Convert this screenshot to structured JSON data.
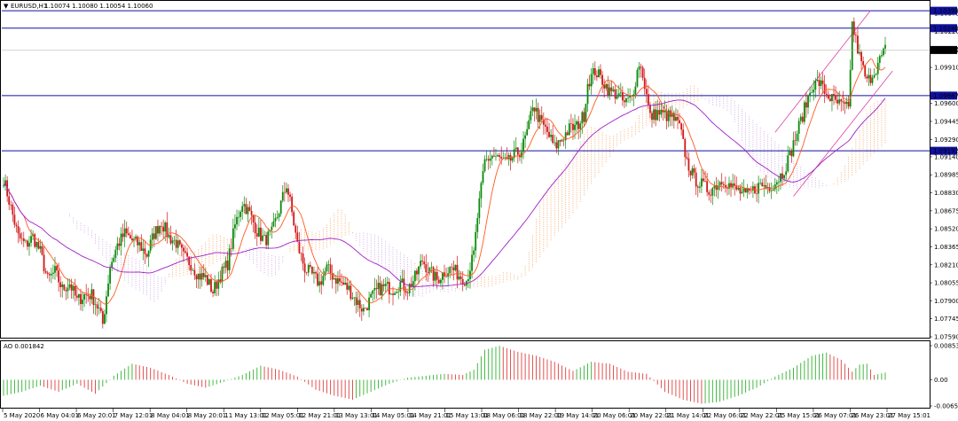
{
  "header": {
    "symbol": "EURUSD,H1",
    "ohlc": "1.10074 1.10080 1.10054 1.10060"
  },
  "indicator": {
    "label": "AO 0.001842"
  },
  "colors": {
    "bull": "#0a8a0a",
    "bear": "#d01818",
    "ma_fast": "#ff5a1e",
    "ma_slow": "#a020c8",
    "cloud_orange": "#f4a060",
    "cloud_violet": "#c8a0e0",
    "hline": "#1010a0",
    "channel": "#e040a0",
    "ao_up": "#30b030",
    "ao_down": "#e04040"
  },
  "chart_data": {
    "type": "candlestick",
    "symbol": "EURUSD",
    "timeframe": "H1",
    "price_range": [
      1.0759,
      1.1046
    ],
    "price_ticks": [
      "1.10375",
      "1.10220",
      "1.10065",
      "1.09910",
      "1.09600",
      "1.09445",
      "1.09290",
      "1.09140",
      "1.08985",
      "1.08830",
      "1.08675",
      "1.08520",
      "1.08365",
      "1.08210",
      "1.08055",
      "1.07900",
      "1.07745",
      "1.07590"
    ],
    "horizontal_lines": [
      {
        "label": "1.10398",
        "price": 1.10398
      },
      {
        "label": "1.10248",
        "price": 1.10248
      },
      {
        "label": "1.09667",
        "price": 1.09667
      },
      {
        "label": "1.09192",
        "price": 1.09192
      }
    ],
    "current_price_label": "1.10060",
    "current_price": 1.1006,
    "time_labels": [
      "5 May 2020",
      "6 May 04:01",
      "6 May 20:01",
      "7 May 12:01",
      "8 May 04:01",
      "8 May 20:01",
      "11 May 13:01",
      "12 May 05:01",
      "12 May 21:01",
      "13 May 13:01",
      "14 May 05:01",
      "14 May 21:01",
      "15 May 13:01",
      "18 May 06:01",
      "18 May 22:01",
      "19 May 14:01",
      "20 May 06:01",
      "20 May 22:01",
      "21 May 14:01",
      "22 May 06:01",
      "22 May 22:01",
      "25 May 15:01",
      "26 May 07:01",
      "26 May 23:01",
      "27 May 15:01"
    ],
    "price_path": [
      [
        0,
        1.0895
      ],
      [
        4,
        1.087
      ],
      [
        8,
        1.0845
      ],
      [
        12,
        1.0838
      ],
      [
        16,
        1.0845
      ],
      [
        20,
        1.0832
      ],
      [
        24,
        1.0808
      ],
      [
        28,
        1.0815
      ],
      [
        32,
        1.08
      ],
      [
        36,
        1.0805
      ],
      [
        40,
        1.079
      ],
      [
        44,
        1.0795
      ],
      [
        48,
        1.0795
      ],
      [
        52,
        1.0782
      ],
      [
        54,
        1.077
      ],
      [
        58,
        1.082
      ],
      [
        62,
        1.0838
      ],
      [
        66,
        1.0848
      ],
      [
        70,
        1.0842
      ],
      [
        74,
        1.0838
      ],
      [
        78,
        1.083
      ],
      [
        82,
        1.0848
      ],
      [
        86,
        1.0858
      ],
      [
        90,
        1.0845
      ],
      [
        94,
        1.084
      ],
      [
        98,
        1.0828
      ],
      [
        102,
        1.0822
      ],
      [
        106,
        1.0812
      ],
      [
        110,
        1.081
      ],
      [
        114,
        1.0798
      ],
      [
        118,
        1.0812
      ],
      [
        122,
        1.0822
      ],
      [
        126,
        1.0855
      ],
      [
        130,
        1.0875
      ],
      [
        134,
        1.0865
      ],
      [
        138,
        1.085
      ],
      [
        142,
        1.0842
      ],
      [
        146,
        1.0848
      ],
      [
        150,
        1.0868
      ],
      [
        154,
        1.089
      ],
      [
        156,
        1.0875
      ],
      [
        160,
        1.0838
      ],
      [
        164,
        1.0818
      ],
      [
        168,
        1.0812
      ],
      [
        172,
        1.0805
      ],
      [
        176,
        1.0818
      ],
      [
        180,
        1.081
      ],
      [
        184,
        1.0805
      ],
      [
        188,
        1.08
      ],
      [
        192,
        1.079
      ],
      [
        196,
        1.0782
      ],
      [
        200,
        1.0792
      ],
      [
        204,
        1.08
      ],
      [
        208,
        1.0802
      ],
      [
        212,
        1.08
      ],
      [
        216,
        1.0805
      ],
      [
        220,
        1.08
      ],
      [
        224,
        1.081
      ],
      [
        228,
        1.0825
      ],
      [
        232,
        1.0815
      ],
      [
        236,
        1.0808
      ],
      [
        240,
        1.0815
      ],
      [
        244,
        1.0818
      ],
      [
        248,
        1.0812
      ],
      [
        252,
        1.0808
      ],
      [
        256,
        1.083
      ],
      [
        258,
        1.0862
      ],
      [
        262,
        1.091
      ],
      [
        266,
        1.0915
      ],
      [
        270,
        1.0912
      ],
      [
        274,
        1.0908
      ],
      [
        278,
        1.0915
      ],
      [
        282,
        1.092
      ],
      [
        286,
        1.094
      ],
      [
        288,
        1.096
      ],
      [
        292,
        1.0945
      ],
      [
        296,
        1.0935
      ],
      [
        300,
        1.0922
      ],
      [
        304,
        1.093
      ],
      [
        308,
        1.0938
      ],
      [
        312,
        1.094
      ],
      [
        316,
        1.095
      ],
      [
        318,
        1.0978
      ],
      [
        322,
        1.0988
      ],
      [
        326,
        1.098
      ],
      [
        330,
        1.097
      ],
      [
        334,
        1.0968
      ],
      [
        338,
        1.096
      ],
      [
        342,
        1.0965
      ],
      [
        346,
        1.0995
      ],
      [
        348,
        1.0985
      ],
      [
        352,
        1.0948
      ],
      [
        356,
        1.0952
      ],
      [
        360,
        1.095
      ],
      [
        364,
        1.0948
      ],
      [
        368,
        1.094
      ],
      [
        372,
        1.091
      ],
      [
        376,
        1.0895
      ],
      [
        380,
        1.089
      ],
      [
        384,
        1.0885
      ],
      [
        388,
        1.089
      ],
      [
        392,
        1.0895
      ],
      [
        396,
        1.0888
      ],
      [
        400,
        1.0885
      ],
      [
        404,
        1.088
      ],
      [
        408,
        1.0885
      ],
      [
        412,
        1.089
      ],
      [
        416,
        1.0888
      ],
      [
        420,
        1.0892
      ],
      [
        424,
        1.09
      ],
      [
        428,
        1.0915
      ],
      [
        432,
        1.0935
      ],
      [
        436,
        1.0955
      ],
      [
        440,
        1.0975
      ],
      [
        444,
        1.0978
      ],
      [
        448,
        1.0968
      ],
      [
        452,
        1.0962
      ],
      [
        456,
        1.0958
      ],
      [
        460,
        1.0955
      ],
      [
        462,
        1.1028
      ],
      [
        466,
        1.1
      ],
      [
        470,
        1.0978
      ],
      [
        474,
        1.0988
      ],
      [
        478,
        1.1
      ],
      [
        480,
        1.1006
      ]
    ],
    "ao_range": [
      -0.00655,
      0.00853
    ],
    "ao_ticks": [
      "0.00853",
      "0.00",
      "-0.00655"
    ],
    "ao_path": [
      [
        0,
        -0.004
      ],
      [
        10,
        -0.003
      ],
      [
        20,
        -0.0015
      ],
      [
        30,
        -0.003
      ],
      [
        40,
        -0.001
      ],
      [
        50,
        -0.0035
      ],
      [
        60,
        0.001
      ],
      [
        70,
        0.004
      ],
      [
        80,
        0.003
      ],
      [
        90,
        0.0012
      ],
      [
        100,
        -0.001
      ],
      [
        110,
        -0.002
      ],
      [
        120,
        -0.0005
      ],
      [
        130,
        0.0012
      ],
      [
        140,
        0.0035
      ],
      [
        150,
        0.0025
      ],
      [
        160,
        0.0008
      ],
      [
        170,
        -0.0025
      ],
      [
        180,
        -0.004
      ],
      [
        190,
        -0.005
      ],
      [
        200,
        -0.003
      ],
      [
        210,
        -0.001
      ],
      [
        220,
        0.0005
      ],
      [
        230,
        0.001
      ],
      [
        240,
        0.0015
      ],
      [
        250,
        0.0012
      ],
      [
        256,
        0.0025
      ],
      [
        262,
        0.0075
      ],
      [
        270,
        0.0085
      ],
      [
        280,
        0.007
      ],
      [
        290,
        0.006
      ],
      [
        300,
        0.0045
      ],
      [
        310,
        0.0022
      ],
      [
        320,
        0.0045
      ],
      [
        330,
        0.004
      ],
      [
        340,
        0.002
      ],
      [
        350,
        0.0015
      ],
      [
        360,
        -0.003
      ],
      [
        370,
        -0.005
      ],
      [
        380,
        -0.006
      ],
      [
        390,
        -0.0055
      ],
      [
        400,
        -0.004
      ],
      [
        410,
        -0.002
      ],
      [
        420,
        0.0008
      ],
      [
        430,
        0.003
      ],
      [
        440,
        0.006
      ],
      [
        448,
        0.0068
      ],
      [
        456,
        0.005
      ],
      [
        462,
        0.002
      ],
      [
        466,
        0.0038
      ],
      [
        470,
        0.004
      ],
      [
        474,
        0.0012
      ],
      [
        480,
        0.0018
      ]
    ]
  }
}
